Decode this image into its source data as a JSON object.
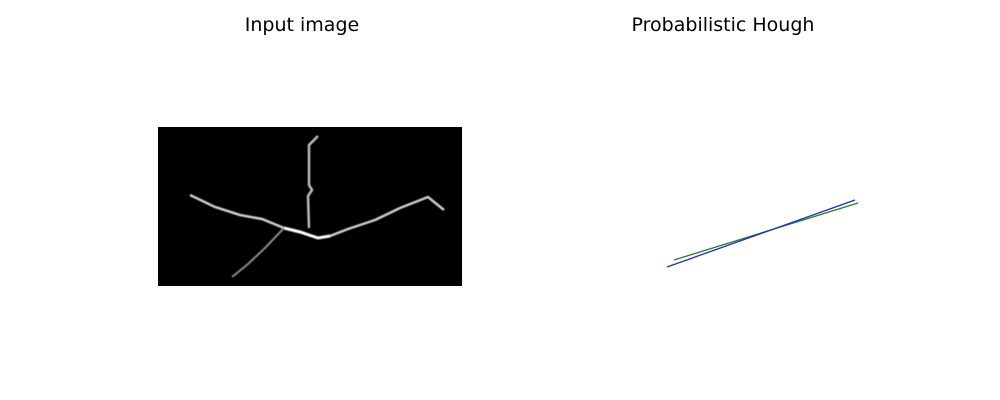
{
  "panels": {
    "left": {
      "title": "Input image"
    },
    "right": {
      "title": "Probabilistic Hough"
    }
  },
  "colors": {
    "image_background": "#000000",
    "line_green": "#2a7a2a",
    "line_blue": "#1f2fbf"
  }
}
